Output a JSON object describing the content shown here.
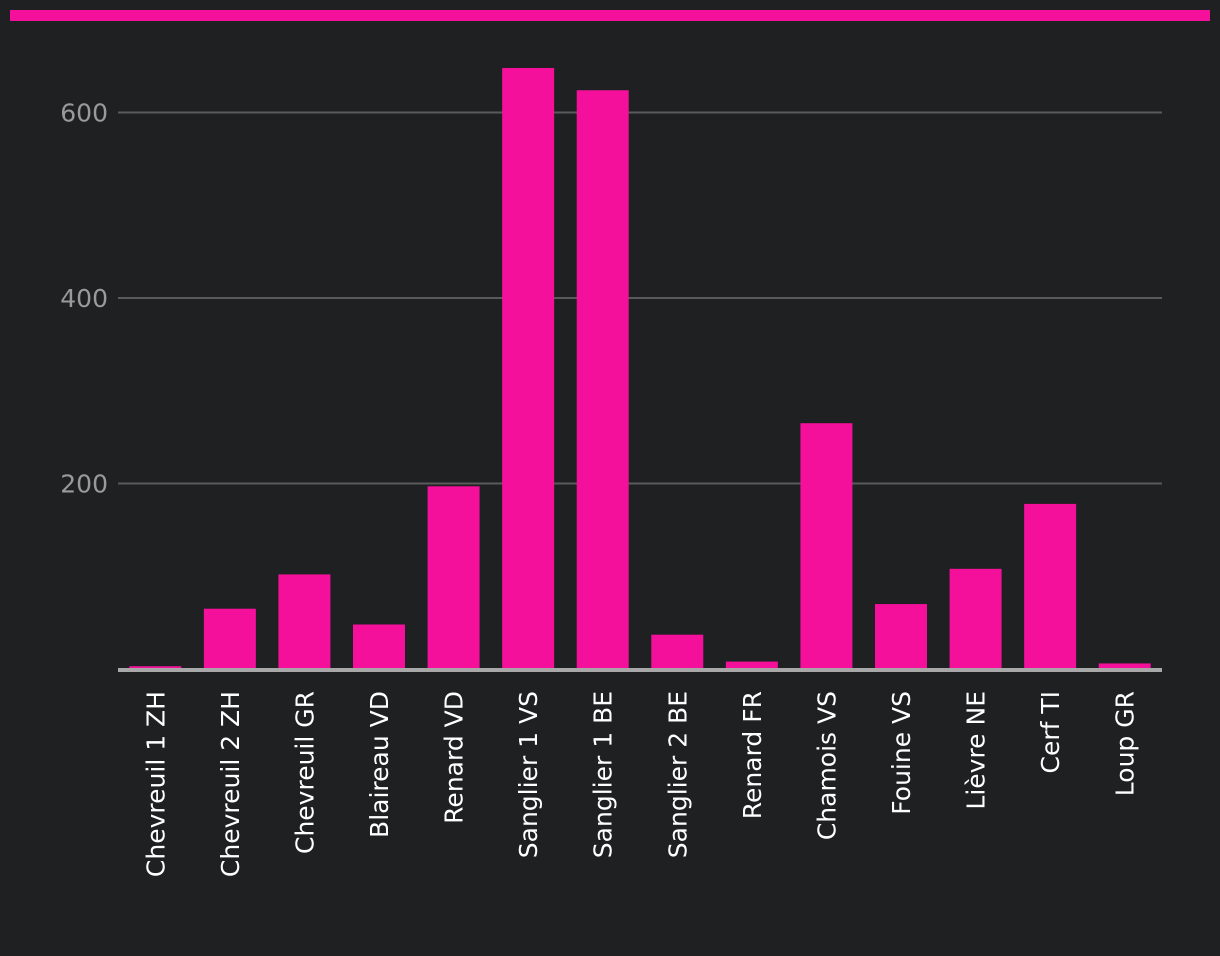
{
  "colors": {
    "background": "#1f2022",
    "accent": "#f5109b",
    "grid": "#5a5a5a",
    "axis": "#a8a8a8",
    "tick_text": "#9a9a9a",
    "label_text": "#ffffff"
  },
  "chart_data": {
    "type": "bar",
    "title": "",
    "xlabel": "",
    "ylabel": "",
    "ylim": [
      0,
      650
    ],
    "yticks": [
      200,
      400,
      600
    ],
    "grid": true,
    "categories": [
      "Chevreuil 1 ZH",
      "Chevreuil 2 ZH",
      "Chevreuil GR",
      "Blaireau VD",
      "Renard VD",
      "Sanglier 1 VS",
      "Sanglier 1 BE",
      "Sanglier 2 BE",
      "Renard FR",
      "Chamois VS",
      "Fouine VS",
      "Lièvre NE",
      "Cerf TI",
      "Loup GR"
    ],
    "values": [
      3,
      65,
      102,
      48,
      197,
      648,
      624,
      37,
      8,
      265,
      70,
      108,
      178,
      6
    ]
  }
}
